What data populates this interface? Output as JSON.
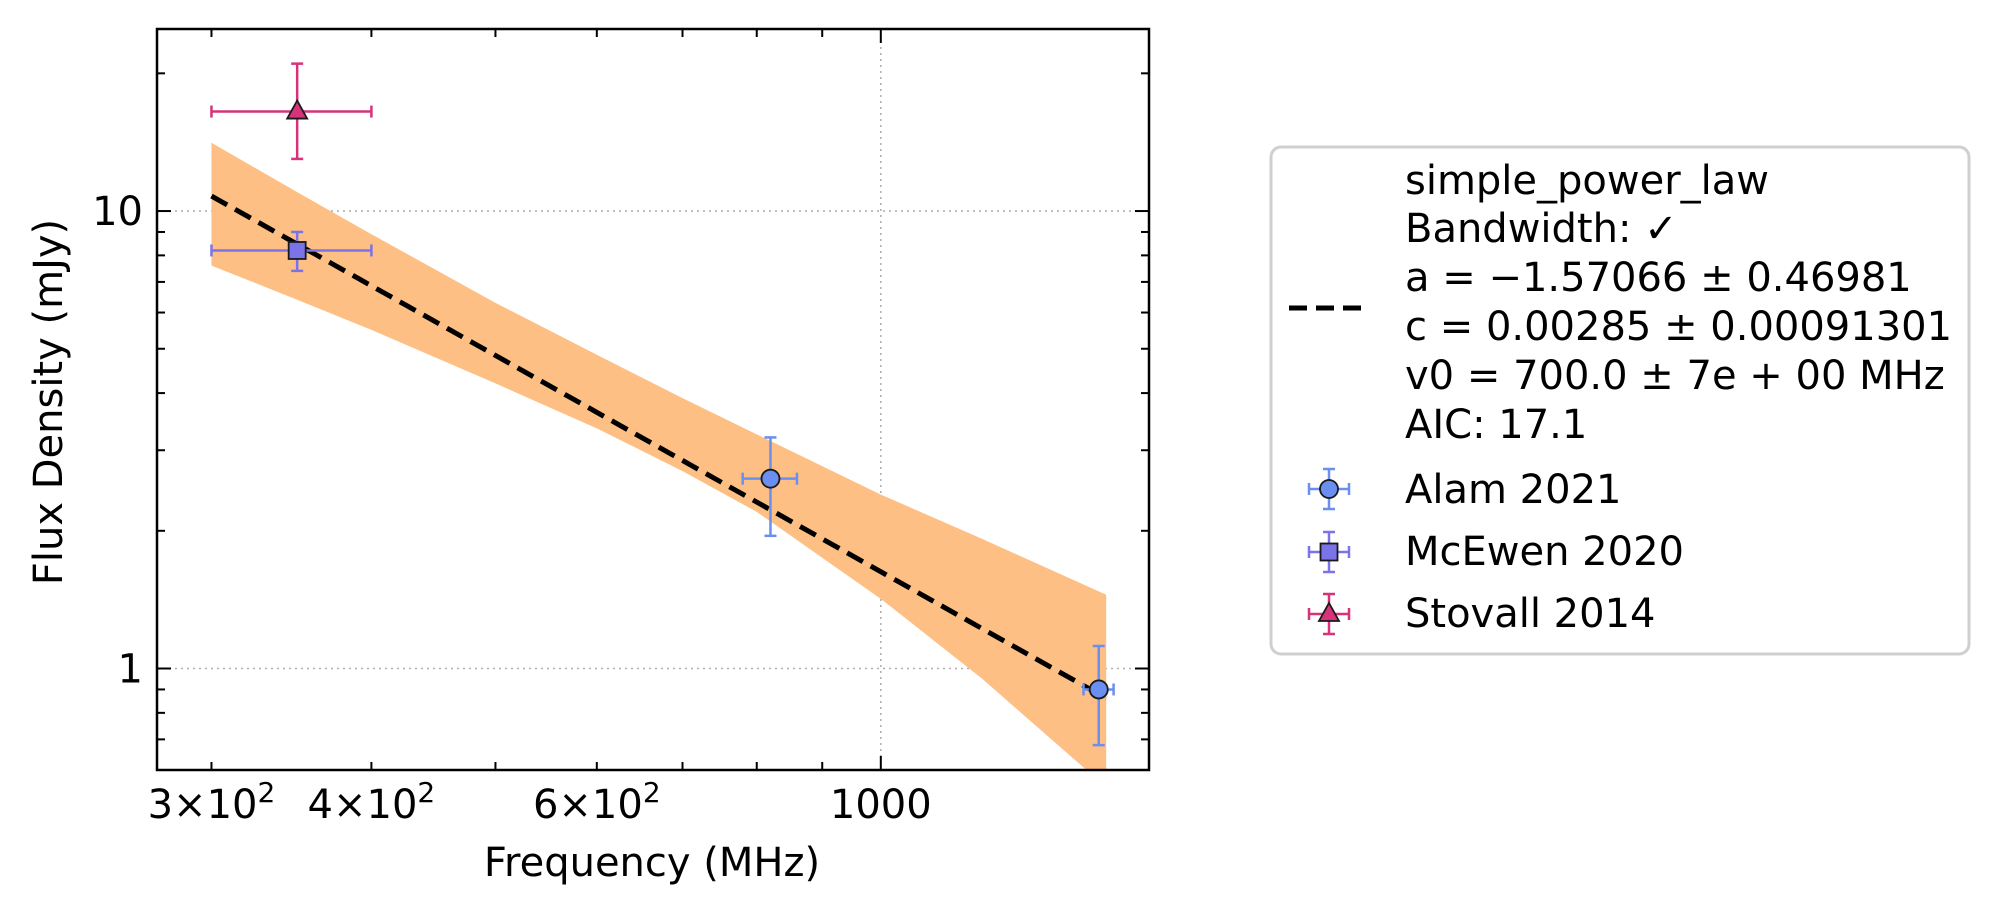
{
  "chart_data": {
    "type": "scatter",
    "xlabel": "Frequency (MHz)",
    "ylabel": "Flux Density (mJy)",
    "xscale": "log",
    "yscale": "log",
    "xlim": [
      272,
      1620
    ],
    "ylim": [
      0.6,
      25
    ],
    "grid": "dotted, major ticks only",
    "x_ticks": [
      {
        "value": 300,
        "mant": "3",
        "exp": "2"
      },
      {
        "value": 400,
        "mant": "4",
        "exp": "2"
      },
      {
        "value": 600,
        "mant": "6",
        "exp": "2"
      },
      {
        "value": 1000,
        "label": "1000"
      }
    ],
    "y_ticks": [
      {
        "value": 1,
        "label": "1"
      },
      {
        "value": 10,
        "label": "10"
      }
    ],
    "fit": {
      "name": "simple_power_law",
      "legend_lines": [
        "simple_power_law",
        "Bandwidth: ✓",
        "a = −1.57066 ± 0.46981",
        "c = 0.00285 ± 0.00091301",
        "v0 = 700.0 ± 7e + 00 MHz",
        "AIC: 17.1"
      ],
      "a": -1.57066,
      "a_err": 0.46981,
      "c": 0.00285,
      "c_err": 0.00091301,
      "v0": 700.0,
      "x_range": [
        300,
        1500
      ],
      "line_color": "#000000",
      "band_color": "#fdbf84",
      "band": {
        "x": [
          300,
          350,
          400,
          500,
          600,
          700,
          800,
          1000,
          1200,
          1500
        ],
        "upper": [
          14.1,
          11.0,
          8.9,
          6.3,
          4.85,
          3.9,
          3.25,
          2.4,
          1.92,
          1.45
        ],
        "lower": [
          7.6,
          6.4,
          5.5,
          4.2,
          3.35,
          2.7,
          2.2,
          1.42,
          0.95,
          0.55
        ]
      }
    },
    "series": [
      {
        "name": "Alam 2021",
        "marker": "circle",
        "color": "#6b8ff0",
        "edge_color": "#6b8ff0",
        "points": [
          {
            "x": 820,
            "y": 2.6,
            "xerr": 40,
            "yerr_low": 0.65,
            "yerr_high": 0.6
          },
          {
            "x": 1480,
            "y": 0.9,
            "xerr": 40,
            "yerr_low": 0.22,
            "yerr_high": 0.22
          }
        ]
      },
      {
        "name": "McEwen 2020",
        "marker": "square",
        "color": "#7b73e8",
        "edge_color": "#7b73e8",
        "points": [
          {
            "x": 350,
            "y": 8.2,
            "xerr": 50,
            "yerr_low": 0.8,
            "yerr_high": 0.8
          }
        ]
      },
      {
        "name": "Stovall 2014",
        "marker": "triangle",
        "color": "#d6337a",
        "edge_color": "#d6337a",
        "points": [
          {
            "x": 350,
            "y": 16.5,
            "xerr": 50,
            "yerr_low": 3.5,
            "yerr_high": 4.5
          }
        ]
      }
    ],
    "legend_position": "outside right"
  }
}
